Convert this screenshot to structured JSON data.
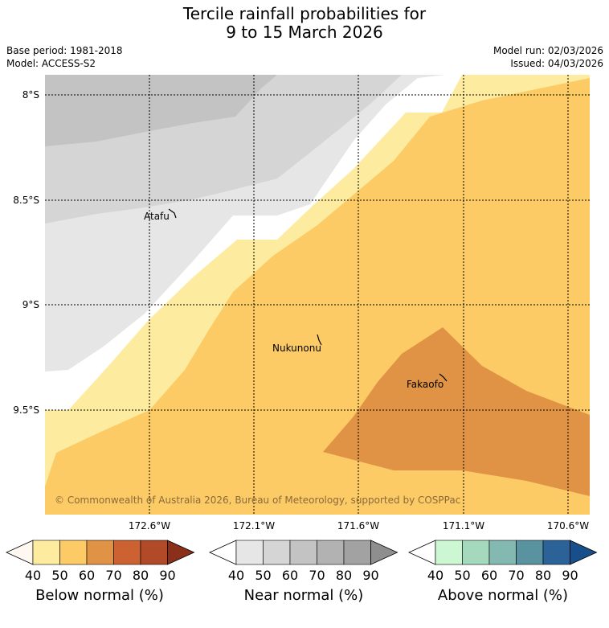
{
  "title": {
    "line1": "Tercile rainfall probabilities for",
    "line2": "9 to 15 March 2026"
  },
  "meta": {
    "base_period": "Base period: 1981-2018",
    "model": "Model: ACCESS-S2",
    "model_run": "Model run: 02/03/2026",
    "issued": "Issued: 04/03/2026"
  },
  "map": {
    "lat_labels": [
      "8°S",
      "8.5°S",
      "9°S",
      "9.5°S"
    ],
    "lon_labels": [
      "172.6°W",
      "172.1°W",
      "171.6°W",
      "171.1°W",
      "170.6°W"
    ],
    "places": [
      "Atafu",
      "Nukunonu",
      "Fakaofo"
    ],
    "copyright": "© Commonwealth of Australia 2026, Bureau of Meteorology, supported by COSPPac"
  },
  "colorbars": [
    {
      "label": "Below normal (%)",
      "ticks": [
        "40",
        "50",
        "60",
        "70",
        "80",
        "90"
      ],
      "colors": [
        "#fff8f0",
        "#fdeba0",
        "#fdcb66",
        "#e09344",
        "#cc6231",
        "#b04a28",
        "#8a2f1a"
      ]
    },
    {
      "label": "Near normal (%)",
      "ticks": [
        "40",
        "50",
        "60",
        "70",
        "80",
        "90"
      ],
      "colors": [
        "#ffffff",
        "#e6e6e6",
        "#d5d5d5",
        "#c3c3c3",
        "#b2b2b2",
        "#a2a2a2",
        "#8e8e8e"
      ]
    },
    {
      "label": "Above normal (%)",
      "ticks": [
        "40",
        "50",
        "60",
        "70",
        "80",
        "90"
      ],
      "colors": [
        "#ffffff",
        "#ccf7d2",
        "#a4d9bd",
        "#84b9b2",
        "#5a93a0",
        "#2b6298",
        "#184f8a"
      ]
    }
  ]
}
